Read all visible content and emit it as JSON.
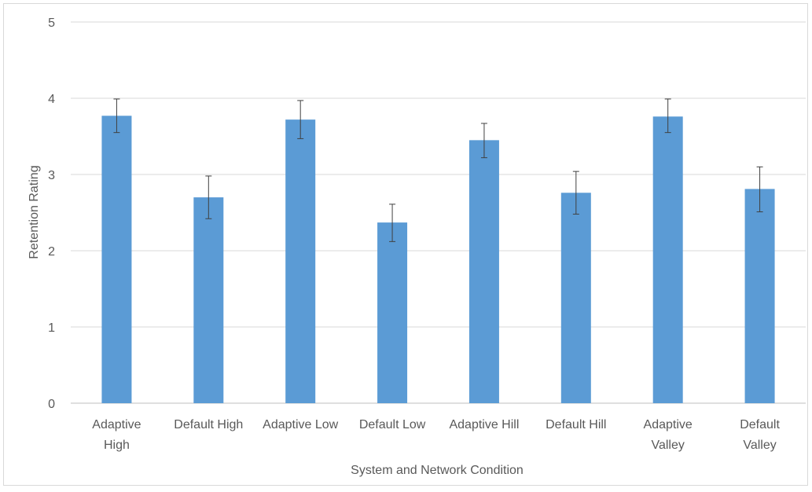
{
  "chart_data": {
    "type": "bar",
    "title": "",
    "xlabel": "System and Network Condition",
    "ylabel": "Retention Rating",
    "ylim": [
      0,
      5
    ],
    "yticks": [
      0,
      1,
      2,
      3,
      4,
      5
    ],
    "grid": true,
    "categories": [
      "Adaptive High",
      "Default High",
      "Adaptive Low",
      "Default Low",
      "Adaptive Hill",
      "Default Hill",
      "Adaptive Valley",
      "Default Valley"
    ],
    "category_lines": [
      [
        "Adaptive",
        "High"
      ],
      [
        "Default High"
      ],
      [
        "Adaptive Low"
      ],
      [
        "Default Low"
      ],
      [
        "Adaptive Hill"
      ],
      [
        "Default Hill"
      ],
      [
        "Adaptive",
        "Valley"
      ],
      [
        "Default",
        "Valley"
      ]
    ],
    "series": [
      {
        "values": [
          3.77,
          2.7,
          3.72,
          2.37,
          3.45,
          2.76,
          3.76,
          2.81
        ],
        "error_low": [
          3.55,
          2.42,
          3.47,
          2.12,
          3.22,
          2.48,
          3.55,
          2.51
        ],
        "error_high": [
          3.99,
          2.98,
          3.97,
          2.61,
          3.67,
          3.04,
          3.99,
          3.1
        ],
        "color": "#5b9bd5"
      }
    ],
    "colors": {
      "bar": "#5b9bd5",
      "grid": "#d9d9d9",
      "axis": "#bfbfbf",
      "text": "#595959",
      "error_bar": "#404040"
    }
  }
}
